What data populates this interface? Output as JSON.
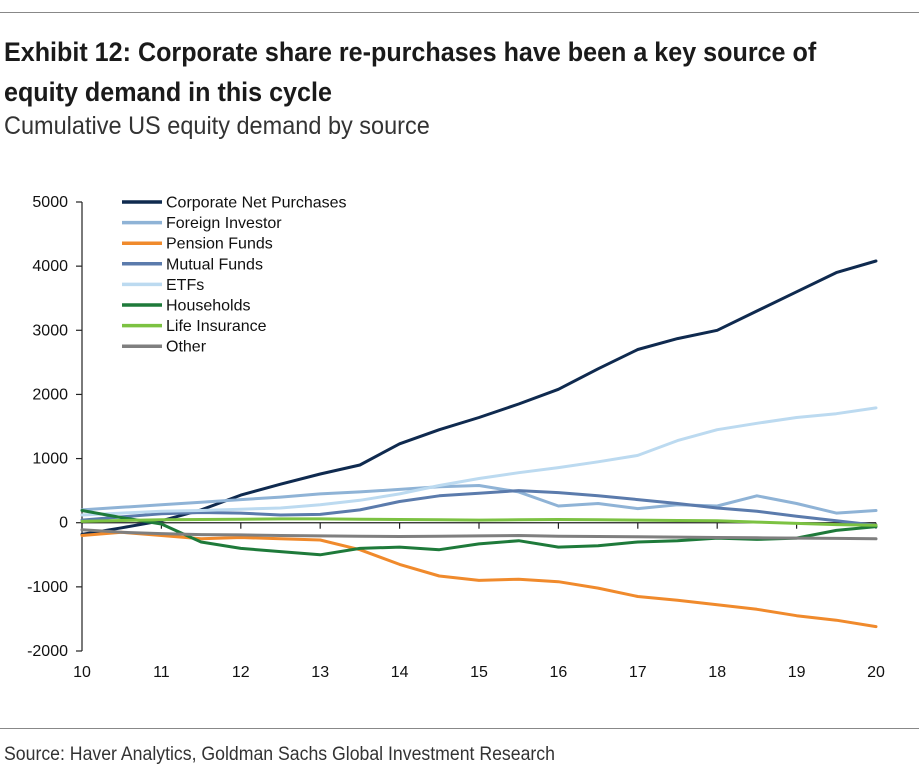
{
  "header": {
    "title": "Exhibit 12: Corporate share re-purchases have been a key source of equity demand in this cycle",
    "subtitle": "Cumulative US equity demand by source"
  },
  "footer": {
    "source": "Source: Haver Analytics, Goldman Sachs Global Investment Research"
  },
  "chart_data": {
    "type": "line",
    "title": "Exhibit 12: Corporate share re-purchases have been a key source of equity demand in this cycle",
    "subtitle": "Cumulative US equity demand by source",
    "xlabel": "",
    "ylabel": "",
    "xlim": [
      10,
      20
    ],
    "ylim": [
      -2000,
      5000
    ],
    "x_ticks": [
      "10",
      "11",
      "12",
      "13",
      "14",
      "15",
      "16",
      "17",
      "18",
      "19",
      "20"
    ],
    "y_ticks": [
      "5000",
      "4000",
      "3000",
      "2000",
      "1000",
      "0",
      "-1000",
      "-2000"
    ],
    "grid": false,
    "legend_position": "top-left",
    "x": [
      10,
      10.5,
      11,
      11.5,
      12,
      12.5,
      13,
      13.5,
      14,
      14.5,
      15,
      15.5,
      16,
      16.5,
      17,
      17.5,
      18,
      18.5,
      19,
      19.5,
      20
    ],
    "series": [
      {
        "name": "Corporate Net Purchases",
        "color": "#0f2a4f",
        "values": [
          -180,
          -80,
          30,
          200,
          430,
          600,
          760,
          900,
          1230,
          1450,
          1640,
          1850,
          2080,
          2400,
          2700,
          2870,
          3000,
          3300,
          3600,
          3900,
          4080
        ]
      },
      {
        "name": "Foreign Investor",
        "color": "#8fb3d6",
        "values": [
          200,
          240,
          280,
          320,
          360,
          400,
          450,
          480,
          520,
          560,
          580,
          480,
          260,
          300,
          220,
          280,
          260,
          420,
          300,
          150,
          190
        ]
      },
      {
        "name": "Pension Funds",
        "color": "#f08a2c",
        "values": [
          -200,
          -150,
          -200,
          -250,
          -230,
          -250,
          -270,
          -420,
          -650,
          -830,
          -900,
          -880,
          -920,
          -1020,
          -1150,
          -1210,
          -1280,
          -1350,
          -1450,
          -1520,
          -1620
        ]
      },
      {
        "name": "Mutual Funds",
        "color": "#5b7bac",
        "values": [
          40,
          90,
          140,
          160,
          150,
          120,
          130,
          200,
          330,
          420,
          460,
          500,
          470,
          420,
          360,
          300,
          230,
          180,
          100,
          30,
          -40
        ]
      },
      {
        "name": "ETFs",
        "color": "#bcdaf0",
        "values": [
          120,
          150,
          180,
          190,
          210,
          230,
          280,
          350,
          450,
          580,
          690,
          780,
          860,
          950,
          1050,
          1280,
          1450,
          1550,
          1640,
          1700,
          1790
        ]
      },
      {
        "name": "Households",
        "color": "#1e7a3a",
        "values": [
          190,
          80,
          -20,
          -300,
          -400,
          -450,
          -500,
          -400,
          -380,
          -420,
          -330,
          -280,
          -380,
          -360,
          -300,
          -280,
          -240,
          -260,
          -240,
          -120,
          -60
        ]
      },
      {
        "name": "Life Insurance",
        "color": "#7cc242",
        "values": [
          20,
          35,
          45,
          50,
          55,
          60,
          60,
          55,
          50,
          45,
          40,
          45,
          50,
          45,
          40,
          35,
          30,
          10,
          -10,
          -30,
          -40
        ]
      },
      {
        "name": "Other",
        "color": "#7f7f7f",
        "values": [
          -110,
          -150,
          -170,
          -185,
          -190,
          -200,
          -205,
          -210,
          -215,
          -210,
          -205,
          -200,
          -210,
          -215,
          -220,
          -225,
          -230,
          -235,
          -240,
          -245,
          -250
        ]
      }
    ]
  }
}
